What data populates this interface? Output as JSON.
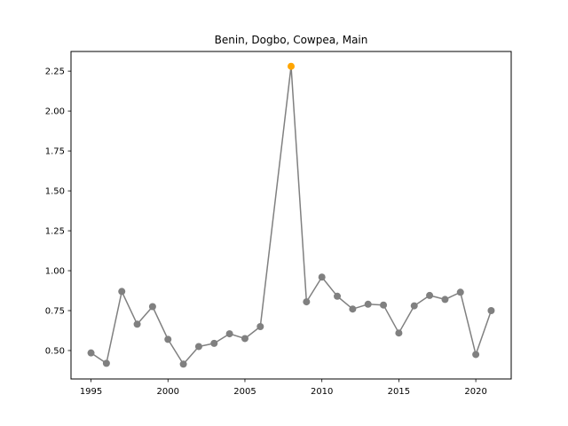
{
  "chart_data": {
    "type": "line",
    "title": "Benin, Dogbo, Cowpea, Main",
    "xlabel": "",
    "ylabel": "",
    "x": [
      1995,
      1996,
      1997,
      1998,
      1999,
      2000,
      2001,
      2002,
      2003,
      2004,
      2005,
      2006,
      2007,
      2008,
      2009,
      2010,
      2011,
      2012,
      2013,
      2014,
      2015,
      2016,
      2017,
      2018,
      2019,
      2020,
      2021
    ],
    "missing_x": [
      2007
    ],
    "series": [
      {
        "values": [
          0.485,
          0.42,
          0.87,
          0.665,
          0.775,
          0.57,
          0.415,
          0.525,
          0.545,
          0.605,
          0.575,
          0.65,
          null,
          2.28,
          0.805,
          0.96,
          0.84,
          0.76,
          0.79,
          0.785,
          0.61,
          0.78,
          0.845,
          0.82,
          0.865,
          0.475,
          0.75
        ],
        "color": "#808080"
      }
    ],
    "highlight": {
      "x": 2008,
      "value": 2.28,
      "color": "#FFA500"
    },
    "xlim": [
      1993.7,
      2022.3
    ],
    "ylim": [
      0.322,
      2.373
    ],
    "xticks": [
      1995,
      2000,
      2005,
      2010,
      2015,
      2020
    ],
    "xtick_labels": [
      "1995",
      "2000",
      "2005",
      "2010",
      "2015",
      "2020"
    ],
    "yticks": [
      0.5,
      0.75,
      1.0,
      1.25,
      1.5,
      1.75,
      2.0,
      2.25
    ],
    "ytick_labels": [
      "0.50",
      "0.75",
      "1.00",
      "1.25",
      "1.50",
      "1.75",
      "2.00",
      "2.25"
    ],
    "grid": false,
    "legend": "none"
  }
}
